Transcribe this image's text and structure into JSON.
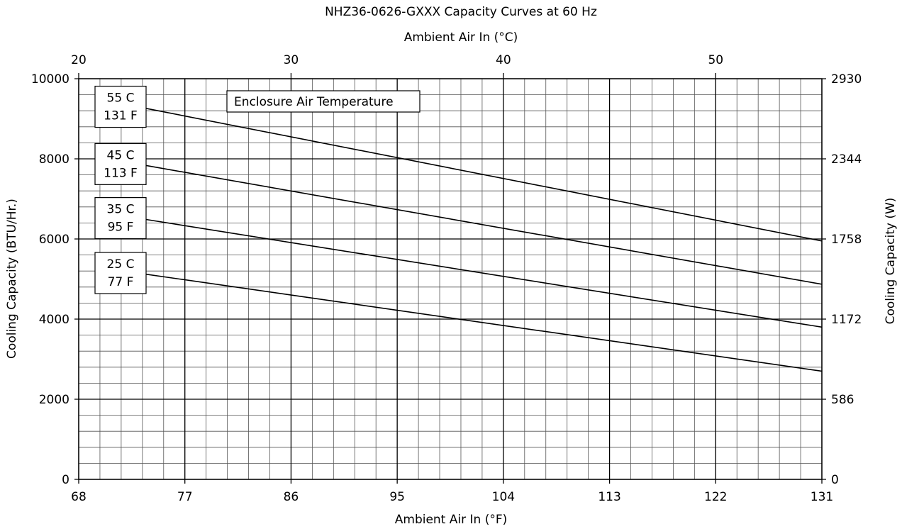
{
  "chart_data": {
    "type": "line",
    "title": "NHZ36-0626-GXXX Capacity Curves at 60 Hz",
    "xlabel_bottom": "Ambient Air In (°F)",
    "xlabel_top": "Ambient Air In (°C)",
    "ylabel_left": "Cooling Capacity (BTU/Hr.)",
    "ylabel_right": "Cooling Capacity (W)",
    "xlim": [
      68,
      131
    ],
    "ylim": [
      0,
      10000
    ],
    "x_ticks": [
      68,
      77,
      86,
      95,
      104,
      113,
      122,
      131
    ],
    "x_tick_labels": [
      "68",
      "77",
      "86",
      "95",
      "104",
      "113",
      "122",
      "131"
    ],
    "top_ticks_c": [
      20,
      30,
      40,
      50
    ],
    "top_tick_labels": [
      "20",
      "30",
      "40",
      "50"
    ],
    "y_ticks": [
      0,
      2000,
      4000,
      6000,
      8000,
      10000
    ],
    "y_tick_labels": [
      "0",
      "2000",
      "4000",
      "6000",
      "8000",
      "10000"
    ],
    "right_tick_labels": [
      "0",
      "586",
      "1172",
      "1758",
      "2344",
      "2930"
    ],
    "grid": true,
    "legend_title": "Enclosure Air Temperature",
    "series": [
      {
        "name": "55 C / 131 F",
        "label_line1": "55 C",
        "label_line2": "131 F",
        "x": [
          73,
          131
        ],
        "y": [
          9300,
          5950
        ]
      },
      {
        "name": "45 C / 113 F",
        "label_line1": "45 C",
        "label_line2": "113 F",
        "x": [
          73,
          131
        ],
        "y": [
          7870,
          4870
        ]
      },
      {
        "name": "35 C / 95 F",
        "label_line1": "35 C",
        "label_line2": "95 F",
        "x": [
          73,
          131
        ],
        "y": [
          6520,
          3800
        ]
      },
      {
        "name": "25 C / 77 F",
        "label_line1": "25 C",
        "label_line2": "77 F",
        "x": [
          73,
          131
        ],
        "y": [
          5150,
          2700
        ]
      }
    ]
  }
}
